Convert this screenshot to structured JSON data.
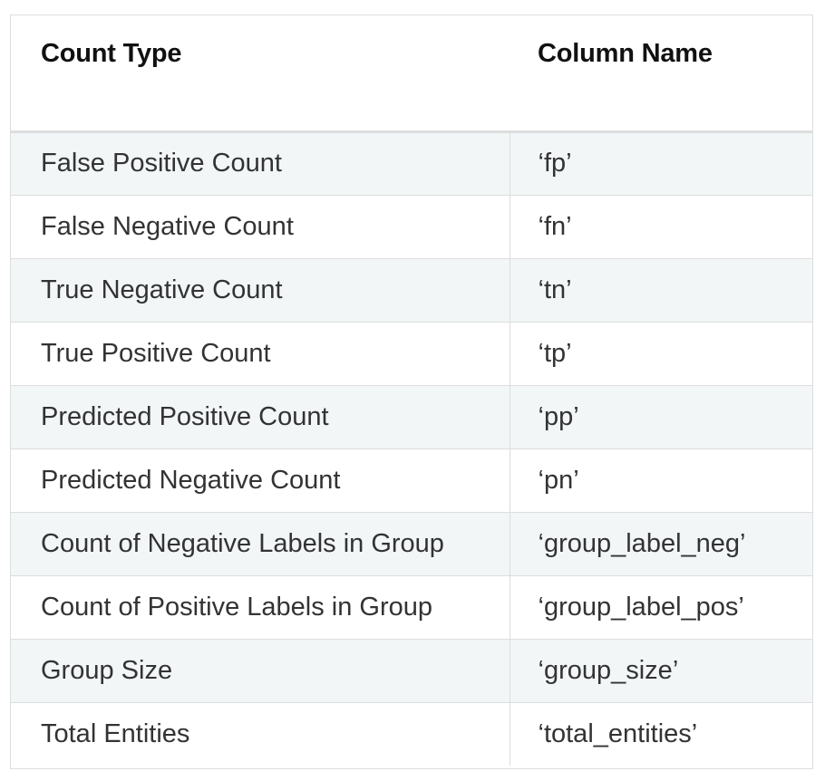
{
  "table": {
    "headers": [
      "Count Type",
      "Column Name"
    ],
    "rows": [
      [
        "False Positive Count",
        "‘fp’"
      ],
      [
        "False Negative Count",
        "‘fn’"
      ],
      [
        "True Negative Count",
        "‘tn’"
      ],
      [
        "True Positive Count",
        "‘tp’"
      ],
      [
        "Predicted Positive Count",
        "‘pp’"
      ],
      [
        "Predicted Negative Count",
        "‘pn’"
      ],
      [
        "Count of Negative Labels in Group",
        "‘group_label_neg’"
      ],
      [
        "Count of Positive Labels in Group",
        "‘group_label_pos’"
      ],
      [
        "Group Size",
        "‘group_size’"
      ],
      [
        "Total Entities",
        "‘total_entities’"
      ]
    ]
  }
}
